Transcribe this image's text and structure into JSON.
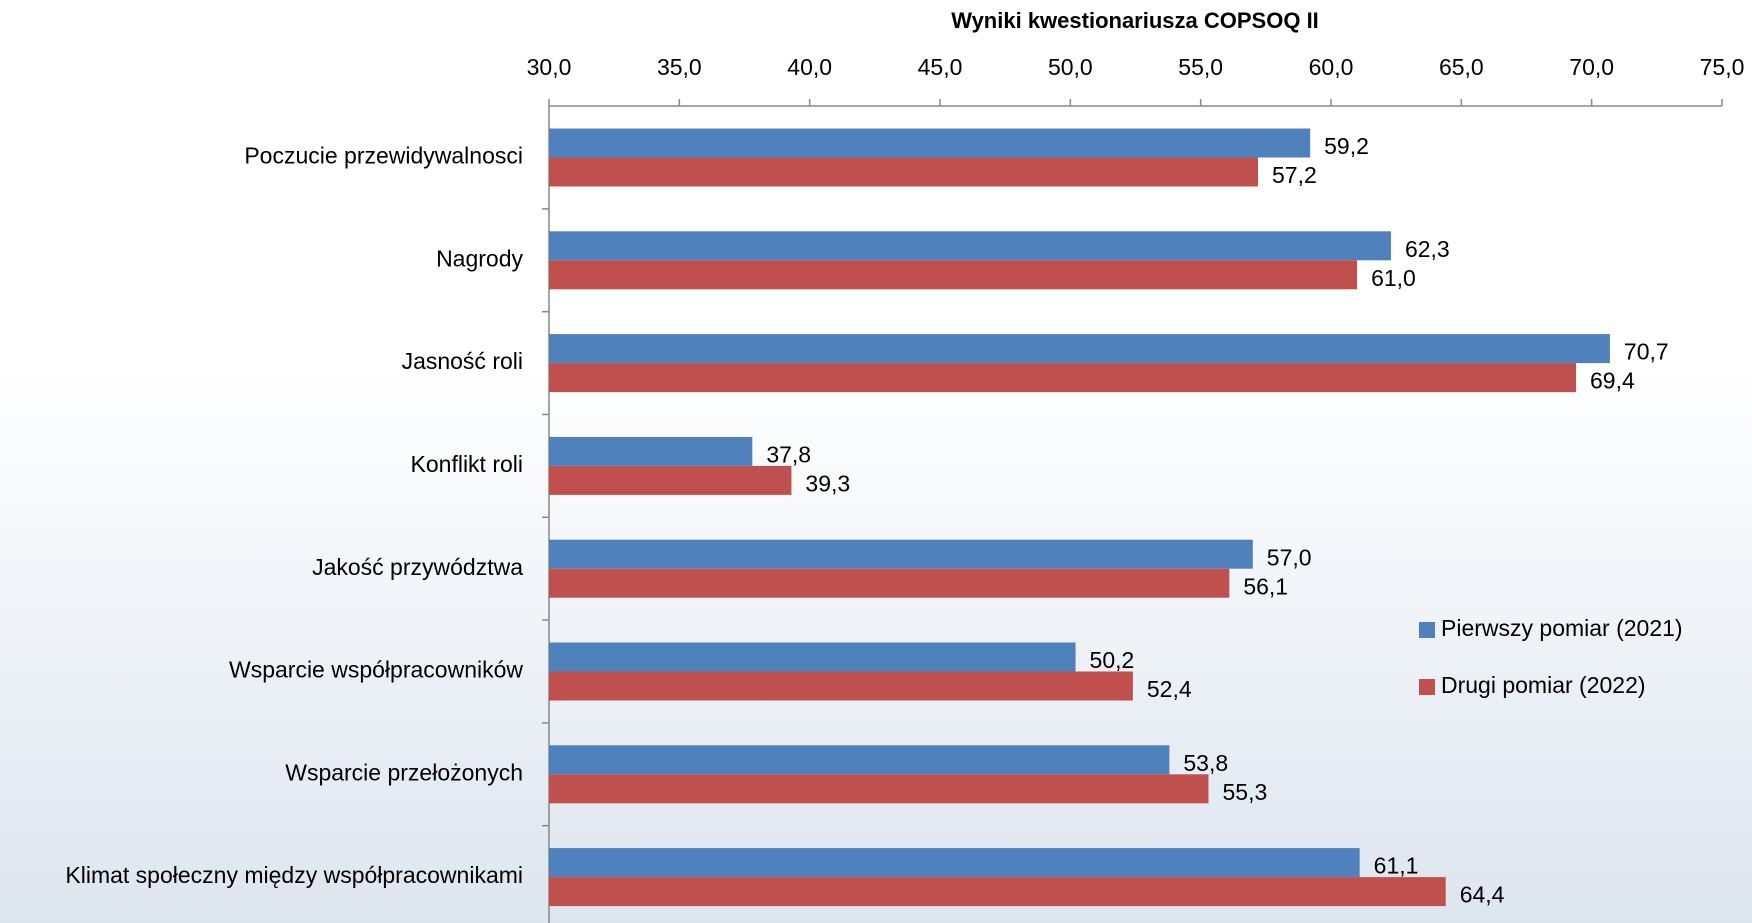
{
  "chart_data": {
    "type": "hbar",
    "title": "Wyniki kwestionariusza COPSOQ II",
    "categories": [
      "Poczucie przewidywalnosci",
      "Nagrody",
      "Jasność roli",
      "Konflikt roli",
      "Jakość przywództwa",
      "Wsparcie współpracowników",
      "Wsparcie przełożonych",
      "Klimat społeczny między współpracownikami"
    ],
    "series": [
      {
        "name": "Pierwszy pomiar (2021)",
        "color": "#4f81bd",
        "values": [
          59.2,
          62.3,
          70.7,
          37.8,
          57.0,
          50.2,
          53.8,
          61.1
        ],
        "value_labels": [
          "59,2",
          "62,3",
          "70,7",
          "37,8",
          "57,0",
          "50,2",
          "53,8",
          "61,1"
        ]
      },
      {
        "name": "Drugi pomiar (2022)",
        "color": "#c0504d",
        "values": [
          57.2,
          61.0,
          69.4,
          39.3,
          56.1,
          52.4,
          55.3,
          64.4
        ],
        "value_labels": [
          "57,2",
          "61,0",
          "69,4",
          "39,3",
          "56,1",
          "52,4",
          "55,3",
          "64,4"
        ]
      }
    ],
    "xlim": [
      30,
      75
    ],
    "xticks": [
      {
        "value": 30,
        "label": "30,0"
      },
      {
        "value": 35,
        "label": "35,0"
      },
      {
        "value": 40,
        "label": "40,0"
      },
      {
        "value": 45,
        "label": "45,0"
      },
      {
        "value": 50,
        "label": "50,0"
      },
      {
        "value": 55,
        "label": "55,0"
      },
      {
        "value": 60,
        "label": "60,0"
      },
      {
        "value": 65,
        "label": "65,0"
      },
      {
        "value": 70,
        "label": "70,0"
      },
      {
        "value": 75,
        "label": "75,0"
      }
    ],
    "legend": "right"
  }
}
